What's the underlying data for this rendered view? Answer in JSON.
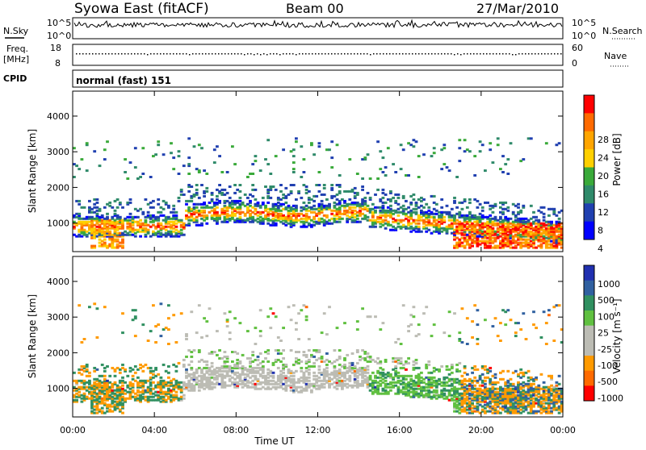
{
  "header": {
    "title": "Syowa East (fitACF)",
    "beam": "Beam 00",
    "date": "27/Mar/2010"
  },
  "summary_panels": {
    "nsky_label": "N.Sky",
    "nsearch_label": "N.Search",
    "noise_ticks": [
      "10^5",
      "10^0"
    ],
    "freq_label": "Freq.",
    "freq_unit": "[MHz]",
    "freq_ticks": [
      "18",
      "8"
    ],
    "nave_label": "Nave",
    "nave_ticks": [
      "60",
      "0"
    ],
    "cpid_label": "CPID",
    "cpid_value": "normal (fast) 151"
  },
  "chart_data": [
    {
      "type": "heatmap",
      "name": "power",
      "ylabel": "Slant Range [km]",
      "y_ticks": [
        1000,
        2000,
        3000,
        4000
      ],
      "ylim": [
        200,
        4700
      ],
      "xlim": [
        0,
        24
      ],
      "colorbar": {
        "label": "Power [dB]",
        "ticks": [
          "28",
          "24",
          "20",
          "16",
          "12",
          "8",
          "4"
        ],
        "colors": [
          "#ff0000",
          "#ff6a00",
          "#ffa500",
          "#ffd000",
          "#3aaa3a",
          "#2f8a6a",
          "#2040b0",
          "#0000ff"
        ]
      }
    },
    {
      "type": "heatmap",
      "name": "velocity",
      "ylabel": "Slant Range [km]",
      "y_ticks": [
        1000,
        2000,
        3000,
        4000
      ],
      "ylim": [
        200,
        4700
      ],
      "xlim": [
        0,
        24
      ],
      "xlabel": "Time UT",
      "x_ticks": [
        "00:00",
        "04:00",
        "08:00",
        "12:00",
        "16:00",
        "20:00",
        "00:00"
      ],
      "colorbar": {
        "label": "Velocity [m s⁻¹]",
        "ticks": [
          "1000",
          "500",
          "100",
          "25",
          "-25",
          "-100",
          "-500",
          "-1000"
        ],
        "colors": [
          "#2030b0",
          "#3060a0",
          "#309060",
          "#60c040",
          "#bcbcb4",
          "#bcbcb4",
          "#ff9a00",
          "#ff6a00",
          "#ff0000"
        ]
      }
    }
  ]
}
